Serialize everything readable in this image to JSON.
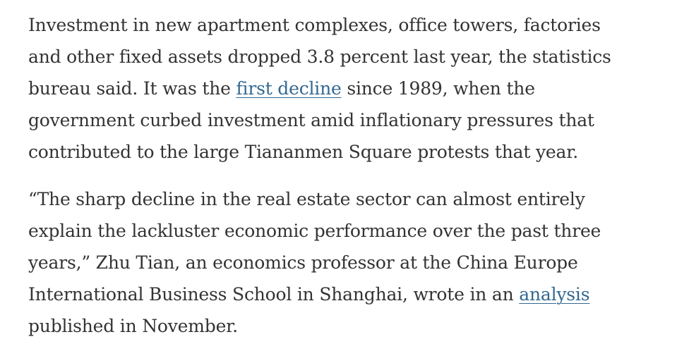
{
  "paragraphs": [
    {
      "lines": [
        [
          {
            "text": "Investment in new apartment complexes, office towers, factories"
          }
        ],
        [
          {
            "text": "and other fixed assets dropped 3.8 percent last year, the statistics"
          }
        ],
        [
          {
            "text": "bureau said. It was the "
          },
          {
            "link": "first decline"
          },
          {
            "text": " since 1989, when the"
          }
        ],
        [
          {
            "text": "government curbed investment amid inflationary pressures that"
          }
        ],
        [
          {
            "text": "contributed to the large Tiananmen Square protests that year."
          }
        ]
      ]
    },
    {
      "lines": [
        [
          {
            "text": "“The sharp decline in the real estate sector can almost entirely"
          }
        ],
        [
          {
            "text": "explain the lackluster economic performance over the past three"
          }
        ],
        [
          {
            "text": "years,” Zhu Tian, an economics professor at the China Europe"
          }
        ],
        [
          {
            "text": "International Business School in Shanghai, wrote in an "
          },
          {
            "link": "analysis"
          }
        ],
        [
          {
            "text": "published in November."
          }
        ]
      ]
    }
  ]
}
